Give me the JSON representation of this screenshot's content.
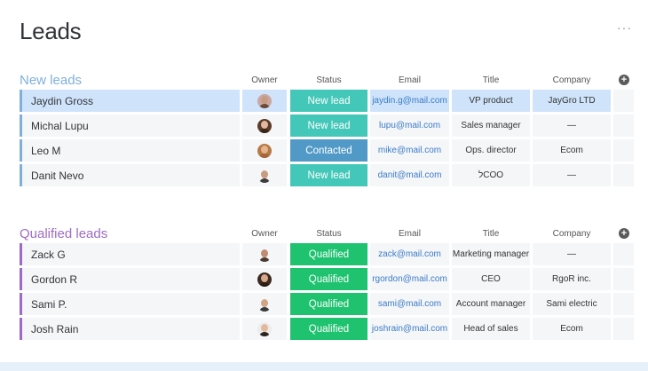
{
  "page": {
    "title": "Leads",
    "more_label": "···"
  },
  "columns": {
    "owner": "Owner",
    "status": "Status",
    "email": "Email",
    "title": "Title",
    "company": "Company",
    "add_icon": "+"
  },
  "colors": {
    "new_leads_accent": "#7fb0dc",
    "qualified_accent": "#9d6bc4",
    "status_new_lead": "#43c7b8",
    "status_contacted": "#5199c6",
    "status_qualified": "#1ec26f",
    "selected_row": "#cfe4fb",
    "email_link": "#3a7bc8"
  },
  "groups": [
    {
      "title": "New leads",
      "color": "#7fb0dc",
      "rows": [
        {
          "name": "Jaydin Gross",
          "status": "New lead",
          "status_color": "#43c7b8",
          "email": "jaydin.g@mail.com",
          "title": "VP product",
          "company": "JayGro LTD",
          "selected": true,
          "avatar": {
            "skin": "#c79a82",
            "hair": "#6b4a3a",
            "bg": "#c9a7a2"
          }
        },
        {
          "name": "Michal Lupu",
          "status": "New lead",
          "status_color": "#43c7b8",
          "email": "lupu@mail.com",
          "title": "Sales manager",
          "company": "—",
          "selected": false,
          "avatar": {
            "skin": "#e2b9a0",
            "hair": "#3a2618",
            "bg": "#5c3b2a"
          }
        },
        {
          "name": "Leo M",
          "status": "Contacted",
          "status_color": "#5199c6",
          "email": "mike@mail.com",
          "title": "Ops. director",
          "company": "Ecom",
          "selected": false,
          "avatar": {
            "skin": "#e6b48c",
            "hair": "#a4663a",
            "bg": "#b57945"
          }
        },
        {
          "name": "Danit Nevo",
          "status": "New lead",
          "status_color": "#43c7b8",
          "email": "danit@mail.com",
          "title": "לCOO",
          "company": "—",
          "selected": false,
          "avatar": {
            "skin": "#c99b80",
            "hair": "#3c3c3c",
            "bg": "#f5f6f8"
          }
        }
      ]
    },
    {
      "title": "Qualified leads",
      "color": "#9d6bc4",
      "rows": [
        {
          "name": "Zack G",
          "status": "Qualified",
          "status_color": "#1ec26f",
          "email": "zack@mail.com",
          "title": "Marketing manager",
          "company": "—",
          "selected": false,
          "avatar": {
            "skin": "#c08d72",
            "hair": "#4a3a30",
            "bg": "#f5f6f8"
          }
        },
        {
          "name": "Gordon R",
          "status": "Qualified",
          "status_color": "#1ec26f",
          "email": "rgordon@mail.com",
          "title": "CEO",
          "company": "RgoR inc.",
          "selected": false,
          "avatar": {
            "skin": "#d9a88c",
            "hair": "#2a1c14",
            "bg": "#3b2a22"
          }
        },
        {
          "name": "Sami P.",
          "status": "Qualified",
          "status_color": "#1ec26f",
          "email": "sami@mail.com",
          "title": "Account manager",
          "company": "Sami electric",
          "selected": false,
          "avatar": {
            "skin": "#d3a584",
            "hair": "#3a3a3a",
            "bg": "#f5f6f8"
          }
        },
        {
          "name": "Josh Rain",
          "status": "Qualified",
          "status_color": "#1ec26f",
          "email": "joshrain@mail.com",
          "title": "Head of sales",
          "company": "Ecom",
          "selected": false,
          "avatar": {
            "skin": "#e2b99e",
            "hair": "#2c2420",
            "bg": "#ececec"
          }
        }
      ]
    }
  ]
}
